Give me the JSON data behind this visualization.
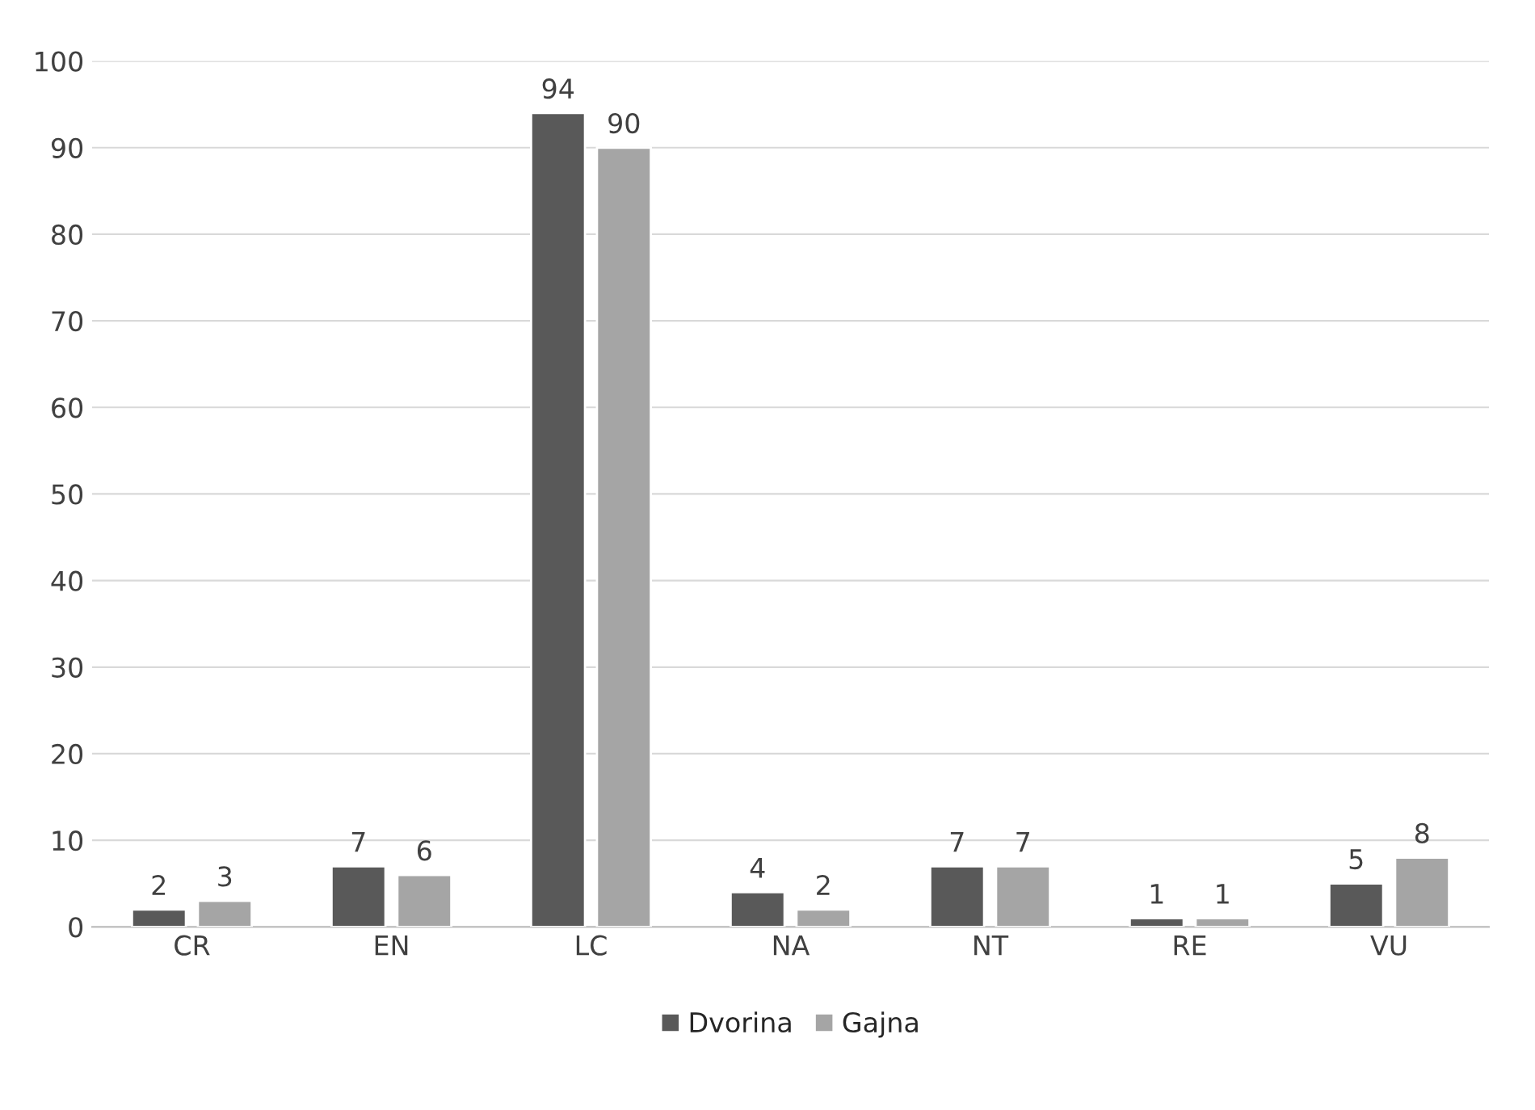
{
  "chart_data": {
    "type": "bar",
    "categories": [
      "CR",
      "EN",
      "LC",
      "NA",
      "NT",
      "RE",
      "VU"
    ],
    "series": [
      {
        "name": "Dvorina",
        "color": "#595959",
        "values": [
          2,
          7,
          94,
          4,
          7,
          1,
          5
        ]
      },
      {
        "name": "Gajna",
        "color": "#a5a5a5",
        "values": [
          3,
          6,
          90,
          2,
          7,
          1,
          8
        ]
      }
    ],
    "ylim": [
      0,
      100
    ],
    "yticks": [
      0,
      10,
      20,
      30,
      40,
      50,
      60,
      70,
      80,
      90,
      100
    ],
    "grid": "y",
    "legend": "bottom",
    "data_labels": true
  }
}
